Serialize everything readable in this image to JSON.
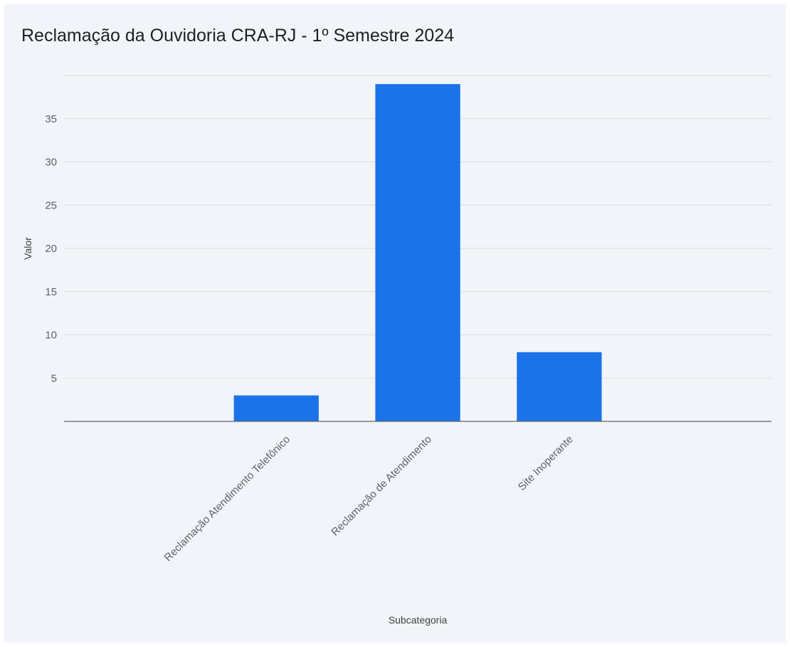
{
  "chart_data": {
    "type": "bar",
    "title": "Reclamação da Ouvidoria CRA-RJ - 1º Semestre 2024",
    "xlabel": "Subcategoria",
    "ylabel": "Valor",
    "categories": [
      "",
      "Reclamação Atendimento Telefônico",
      "Reclamação de Atendimento",
      "Site Inoperante",
      ""
    ],
    "values": [
      null,
      3,
      39,
      8,
      null
    ],
    "ylim": [
      0,
      40
    ],
    "yticks": [
      5,
      10,
      15,
      20,
      25,
      30,
      35
    ],
    "grid": true,
    "bar_color": "#1a73e8",
    "background_color": "#f1f4f9"
  }
}
